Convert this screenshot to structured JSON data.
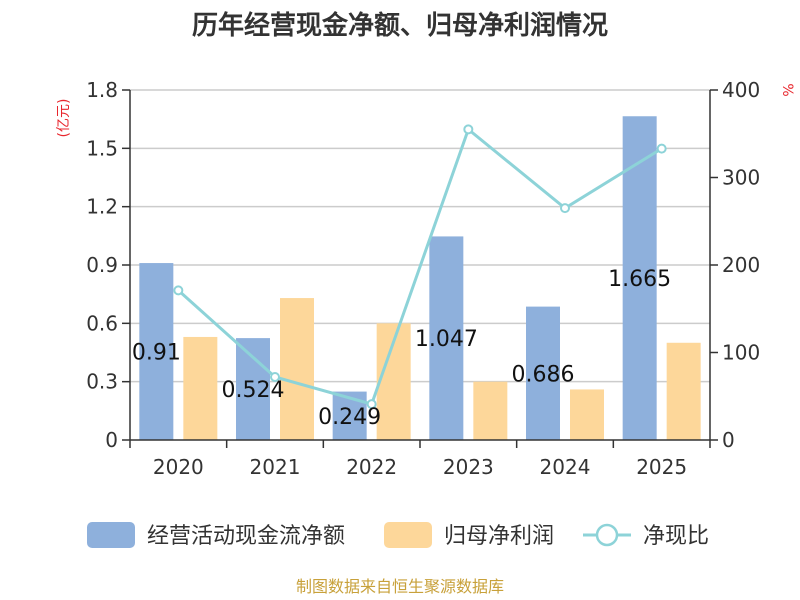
{
  "chart_data": {
    "type": "bar",
    "title": "历年经营现金净额、归母净利润情况",
    "categories": [
      "2020",
      "2021",
      "2022",
      "2023",
      "2024",
      "2025"
    ],
    "series": [
      {
        "name": "经营活动现金流净额",
        "kind": "bar",
        "axis": "left",
        "color": "#8eb0dc",
        "values": [
          0.91,
          0.524,
          0.249,
          1.047,
          0.686,
          1.665
        ],
        "labels": [
          "0.91",
          "0.524",
          "0.249",
          "1.047",
          "0.686",
          "1.665"
        ]
      },
      {
        "name": "归母净利润",
        "kind": "bar",
        "axis": "left",
        "color": "#fdd79a",
        "values": [
          0.53,
          0.73,
          0.6,
          0.3,
          0.26,
          0.5
        ]
      },
      {
        "name": "净现比",
        "kind": "line",
        "axis": "right",
        "color": "#8dd3d8",
        "values": [
          171,
          72,
          41,
          355,
          265,
          333
        ]
      }
    ],
    "y_left": {
      "unit": "(亿元)",
      "ylim": [
        0,
        1.8
      ],
      "ticks": [
        "0",
        "0.3",
        "0.6",
        "0.9",
        "1.2",
        "1.5",
        "1.8"
      ]
    },
    "y_right": {
      "unit": "%",
      "ylim": [
        0,
        400
      ],
      "ticks": [
        "0",
        "100",
        "200",
        "300",
        "400"
      ]
    },
    "grid": true,
    "legend": "bottom"
  },
  "source_text": "制图数据来自恒生聚源数据库",
  "colors": {
    "unit": "#e8262d",
    "source": "#c8a13a",
    "axis": "#333333",
    "grid": "#cccccc"
  }
}
